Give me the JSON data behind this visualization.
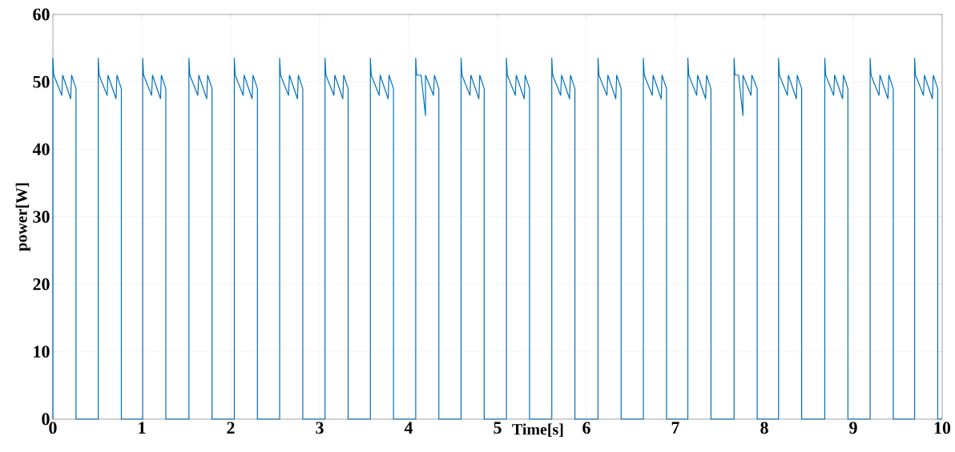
{
  "chart_data": {
    "type": "line",
    "xlabel": "Time[s]",
    "ylabel": "power[W]",
    "color": "#0072bd",
    "grid": true,
    "line_style": "solid",
    "xlim": [
      0,
      10
    ],
    "ylim": [
      0,
      60
    ],
    "xticks": [
      0,
      1,
      2,
      3,
      4,
      5,
      6,
      7,
      8,
      9,
      10
    ],
    "yticks": [
      0,
      10,
      20,
      30,
      40,
      50,
      60
    ],
    "x": [
      0,
      0,
      0.01,
      0.1,
      0.11,
      0.2,
      0.21,
      0.26,
      0.26,
      0.51,
      0.51,
      0.52,
      0.61,
      0.62,
      0.71,
      0.72,
      0.77,
      0.77,
      1.01,
      1.01,
      1.02,
      1.11,
      1.12,
      1.21,
      1.22,
      1.27,
      1.27,
      1.53,
      1.53,
      1.54,
      1.63,
      1.64,
      1.73,
      1.74,
      1.79,
      1.79,
      2.04,
      2.04,
      2.05,
      2.14,
      2.15,
      2.24,
      2.25,
      2.3,
      2.3,
      2.55,
      2.55,
      2.56,
      2.65,
      2.66,
      2.75,
      2.76,
      2.81,
      2.81,
      3.06,
      3.06,
      3.07,
      3.16,
      3.17,
      3.26,
      3.27,
      3.32,
      3.32,
      3.57,
      3.57,
      3.58,
      3.67,
      3.68,
      3.77,
      3.78,
      3.83,
      3.83,
      4.08,
      4.08,
      4.09,
      4.14,
      4.19,
      4.19,
      4.28,
      4.29,
      4.34,
      4.34,
      4.59,
      4.59,
      4.6,
      4.69,
      4.7,
      4.79,
      4.8,
      4.85,
      4.85,
      5.1,
      5.1,
      5.11,
      5.2,
      5.21,
      5.3,
      5.31,
      5.36,
      5.36,
      5.61,
      5.61,
      5.62,
      5.71,
      5.72,
      5.81,
      5.82,
      5.87,
      5.87,
      6.13,
      6.13,
      6.14,
      6.23,
      6.24,
      6.33,
      6.34,
      6.39,
      6.39,
      6.64,
      6.64,
      6.65,
      6.74,
      6.75,
      6.84,
      6.85,
      6.9,
      6.9,
      7.14,
      7.14,
      7.15,
      7.24,
      7.25,
      7.34,
      7.35,
      7.4,
      7.4,
      7.66,
      7.66,
      7.67,
      7.71,
      7.76,
      7.76,
      7.85,
      7.86,
      7.92,
      7.92,
      8.16,
      8.16,
      8.17,
      8.26,
      8.27,
      8.36,
      8.37,
      8.42,
      8.42,
      8.68,
      8.68,
      8.69,
      8.78,
      8.79,
      8.88,
      8.89,
      8.94,
      8.94,
      9.19,
      9.19,
      9.2,
      9.29,
      9.3,
      9.39,
      9.4,
      9.45,
      9.45,
      9.69,
      9.69,
      9.7,
      9.79,
      9.8,
      9.89,
      9.9,
      9.95,
      9.95,
      10
    ],
    "values": [
      0,
      53.5,
      51,
      48,
      51,
      47.5,
      51,
      49,
      0,
      0,
      53.5,
      51,
      48,
      51,
      47.5,
      51,
      49,
      0,
      0,
      53.5,
      51,
      48,
      51,
      47.5,
      51,
      49,
      0,
      0,
      53.5,
      51,
      48,
      51,
      47.5,
      51,
      49,
      0,
      0,
      53.5,
      51,
      48,
      51,
      47.5,
      51,
      49,
      0,
      0,
      53.5,
      51,
      48,
      51,
      47.5,
      51,
      49,
      0,
      0,
      53.5,
      51,
      48,
      51,
      47.5,
      51,
      49,
      0,
      0,
      53.5,
      51,
      48,
      51,
      47.5,
      51,
      49,
      0,
      0,
      53.5,
      51,
      51,
      45,
      51,
      48,
      51,
      49,
      0,
      0,
      53.5,
      51,
      48,
      51,
      47.5,
      51,
      49,
      0,
      0,
      53.5,
      51,
      48,
      51,
      47.5,
      51,
      49,
      0,
      0,
      53.5,
      51,
      48,
      51,
      47.5,
      51,
      49,
      0,
      0,
      53.5,
      51,
      48,
      51,
      47.5,
      51,
      49,
      0,
      0,
      53.5,
      51,
      48,
      51,
      47.5,
      51,
      49,
      0,
      0,
      53.5,
      51,
      48,
      51,
      47.5,
      51,
      49,
      0,
      0,
      53.5,
      51,
      51,
      45,
      51,
      48,
      51,
      49,
      0,
      0,
      53.5,
      51,
      48,
      51,
      47.5,
      51,
      49,
      0,
      0,
      53.5,
      51,
      48,
      51,
      47.5,
      51,
      49,
      0,
      0,
      53.5,
      51,
      48,
      51,
      47.5,
      51,
      49,
      0,
      0,
      53.5,
      51,
      48,
      51,
      47.5,
      51,
      49,
      0,
      0
    ]
  }
}
